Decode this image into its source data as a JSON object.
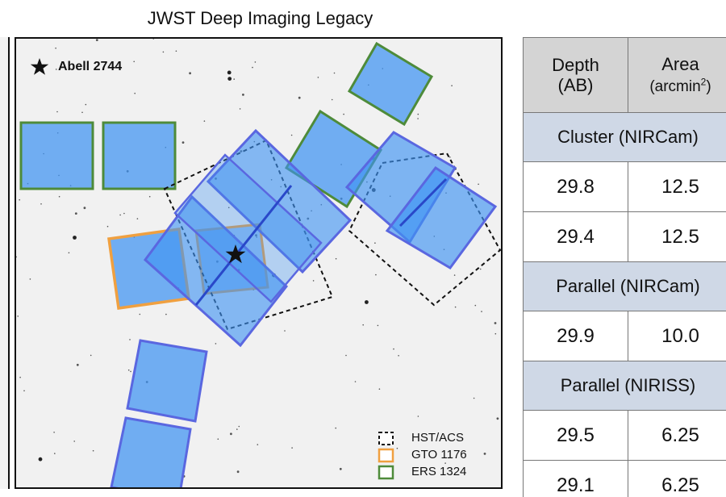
{
  "title": "JWST Deep Imaging Legacy",
  "map": {
    "target_label": "Abell 2744",
    "target_icon": "star-icon",
    "colors": {
      "fill": "#3f93f2",
      "nircam_outline": "#5a67e0",
      "gto": "#f0a040",
      "ers": "#4e8b3a",
      "hst": "#111111"
    },
    "legend": [
      {
        "label": "HST/ACS",
        "style": "dashed",
        "color": "#111111"
      },
      {
        "label": "GTO 1176",
        "style": "solid",
        "color": "#f0a040"
      },
      {
        "label": "ERS 1324",
        "style": "solid",
        "color": "#4e8b3a"
      }
    ]
  },
  "table": {
    "headers": {
      "depth": [
        "Depth",
        "(AB)"
      ],
      "area": [
        "Area",
        "(arcmin",
        "2",
        ")"
      ]
    },
    "sections": [
      {
        "label": "Cluster (NIRCam)",
        "rows": [
          [
            "29.8",
            "12.5"
          ],
          [
            "29.4",
            "12.5"
          ]
        ]
      },
      {
        "label": "Parallel (NIRCam)",
        "rows": [
          [
            "29.9",
            "10.0"
          ]
        ]
      },
      {
        "label": "Parallel (NIRISS)",
        "rows": [
          [
            "29.5",
            "6.25"
          ],
          [
            "29.1",
            "6.25"
          ]
        ]
      }
    ]
  }
}
